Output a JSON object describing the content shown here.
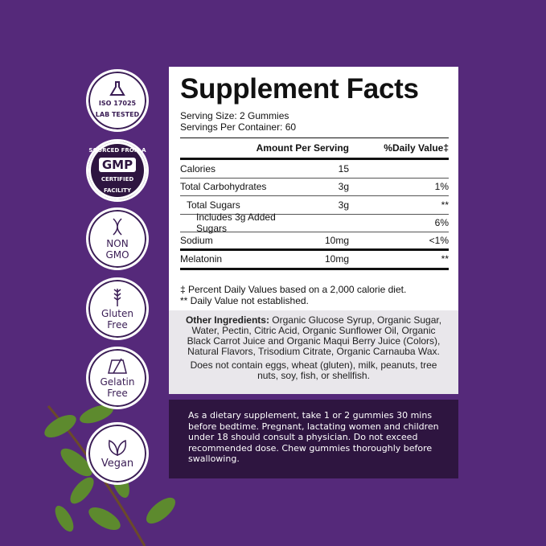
{
  "badges": [
    {
      "lines": [
        "ISO 17025",
        "LAB TESTED"
      ],
      "icon": "flask-icon"
    },
    {
      "lines": [
        "SOURCED FROM A",
        "GMP",
        "CERTIFIED FACILITY"
      ],
      "icon": "gmp-icon"
    },
    {
      "lines": [
        "NON",
        "GMO"
      ],
      "icon": "dna-icon"
    },
    {
      "lines": [
        "Gluten",
        "Free"
      ],
      "icon": "wheat-icon"
    },
    {
      "lines": [
        "Gelatin",
        "Free"
      ],
      "icon": "gelatin-icon"
    },
    {
      "lines": [
        "Vegan"
      ],
      "icon": "leaves-icon"
    }
  ],
  "facts": {
    "title": "Supplement Facts",
    "serving_size": "Serving Size: 2 Gummies",
    "servings_per_container": "Servings Per Container: 60",
    "header": {
      "amount": "Amount Per Serving",
      "dv": "%Daily Value‡"
    },
    "rows": [
      {
        "name": "Calories",
        "amount": "15",
        "dv": ""
      },
      {
        "name": "Total Carbohydrates",
        "amount": "3g",
        "dv": "1%"
      },
      {
        "name": "Total Sugars",
        "amount": "3g",
        "dv": "**"
      },
      {
        "name": "Includes 3g Added Sugars",
        "amount": "",
        "dv": "6%"
      },
      {
        "name": "Sodium",
        "amount": "10mg",
        "dv": "<1%"
      },
      {
        "name": "Melatonin",
        "amount": "10mg",
        "dv": "**"
      }
    ],
    "footnote1": "‡ Percent Daily Values based on a 2,000 calorie diet.",
    "footnote2": "** Daily Value not established."
  },
  "ingredients": {
    "label": "Other Ingredients:",
    "text": " Organic Glucose Syrup, Organic Sugar, Water, Pectin, Citric Acid, Organic Sunflower Oil, Organic Black Carrot Juice and Organic Maqui Berry Juice (Colors), Natural Flavors, Trisodium Citrate, Organic Carnauba Wax.",
    "allergens": "Does not contain eggs, wheat (gluten), milk, peanuts, tree nuts, soy, fish, or shellfish."
  },
  "directions": "As a dietary supplement, take 1 or 2 gummies 30 mins before bedtime. Pregnant, lactating women and children under 18 should consult a physician. Do not exceed recommended dose. Chew gummies thoroughly before swallowing.",
  "colors": {
    "background": "#55297a",
    "dark": "#2e1540",
    "gray": "#e9e7eb"
  }
}
